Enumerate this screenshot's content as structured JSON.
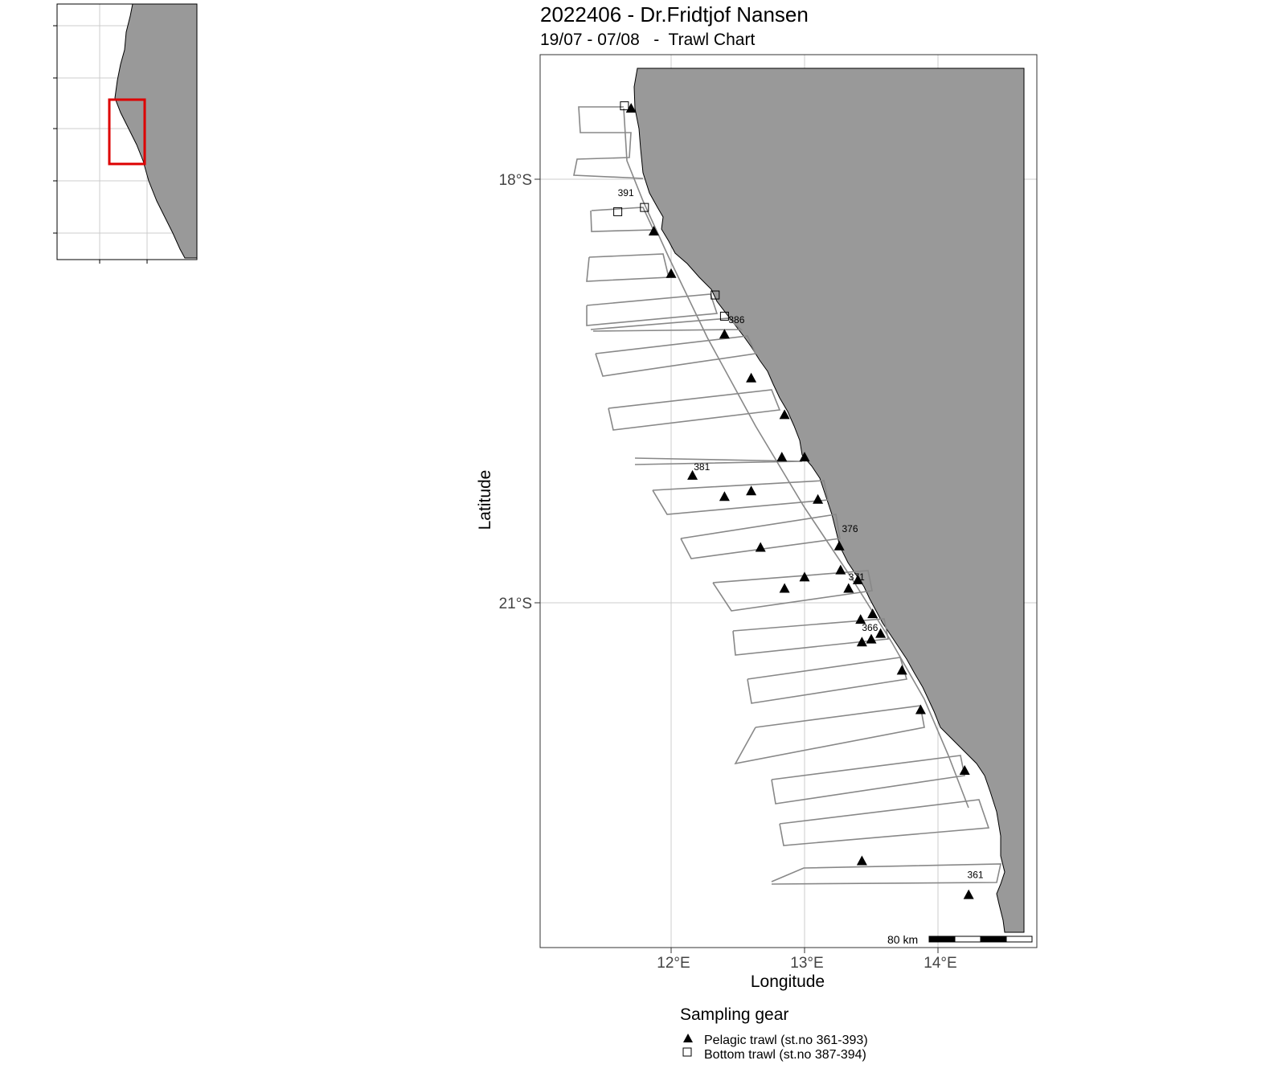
{
  "title": "2022406 - Dr.Fridtjof Nansen",
  "subtitle": "19/07 - 07/08   -  Trawl Chart",
  "axes": {
    "xlabel": "Longitude",
    "ylabel": "Latitude",
    "xticks": [
      {
        "value": 12,
        "label": "12°E"
      },
      {
        "value": 13,
        "label": "13°E"
      },
      {
        "value": 14,
        "label": "14°E"
      }
    ],
    "yticks": [
      {
        "value": -18,
        "label": "18°S"
      },
      {
        "value": -21,
        "label": "21°S"
      }
    ],
    "xlim": [
      11.0,
      14.7
    ],
    "ylim": [
      -23.4,
      -16.7
    ]
  },
  "scale_bar": {
    "label": "80 km"
  },
  "legend": {
    "title": "Sampling gear",
    "items": [
      {
        "symbol": "filled-triangle",
        "label": "Pelagic trawl (st.no 361-393)"
      },
      {
        "symbol": "open-square",
        "label": "Bottom trawl (st.no 387-394)"
      }
    ]
  },
  "station_labels": [
    {
      "text": "391",
      "lon": 11.6,
      "lat": -18.12
    },
    {
      "text": "386",
      "lon": 12.43,
      "lat": -19.02
    },
    {
      "text": "381",
      "lon": 12.17,
      "lat": -20.06
    },
    {
      "text": "376",
      "lon": 13.28,
      "lat": -20.5
    },
    {
      "text": "371",
      "lon": 13.33,
      "lat": -20.84
    },
    {
      "text": "366",
      "lon": 13.43,
      "lat": -21.2
    },
    {
      "text": "361",
      "lon": 14.22,
      "lat": -22.95
    }
  ],
  "pelagic_stations": [
    [
      11.7,
      -17.5
    ],
    [
      11.87,
      -18.37
    ],
    [
      12.0,
      -18.67
    ],
    [
      12.4,
      -19.1
    ],
    [
      12.6,
      -19.41
    ],
    [
      12.85,
      -19.67
    ],
    [
      12.83,
      -19.97
    ],
    [
      13.0,
      -19.97
    ],
    [
      12.16,
      -20.1
    ],
    [
      12.4,
      -20.25
    ],
    [
      12.6,
      -20.21
    ],
    [
      13.1,
      -20.27
    ],
    [
      13.26,
      -20.6
    ],
    [
      12.67,
      -20.61
    ],
    [
      13.27,
      -20.77
    ],
    [
      13.4,
      -20.84
    ],
    [
      13.33,
      -20.9
    ],
    [
      13.0,
      -20.82
    ],
    [
      12.85,
      -20.9
    ],
    [
      13.42,
      -21.12
    ],
    [
      13.51,
      -21.08
    ],
    [
      13.57,
      -21.22
    ],
    [
      13.43,
      -21.28
    ],
    [
      13.5,
      -21.26
    ],
    [
      13.73,
      -21.48
    ],
    [
      13.87,
      -21.76
    ],
    [
      14.2,
      -22.19
    ],
    [
      13.43,
      -22.83
    ],
    [
      14.23,
      -23.07
    ]
  ],
  "bottom_stations": [
    [
      11.65,
      -17.48
    ],
    [
      11.6,
      -18.23
    ],
    [
      11.8,
      -18.2
    ],
    [
      12.33,
      -18.82
    ],
    [
      12.4,
      -18.97
    ]
  ],
  "inset": {
    "frame_color": "#000000",
    "highlight_color": "#dd0000"
  },
  "colors": {
    "land": "#999999",
    "track": "#888888",
    "grid": "#cccccc",
    "marker": "#000000"
  }
}
